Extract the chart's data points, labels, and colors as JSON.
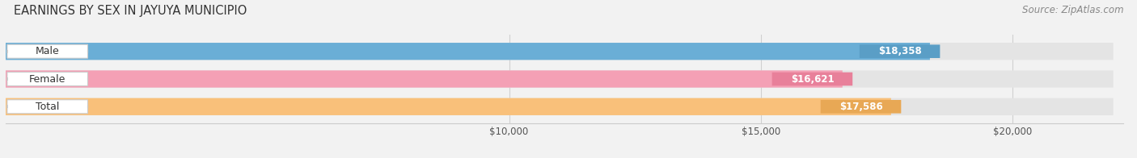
{
  "title": "EARNINGS BY SEX IN JAYUYA MUNICIPIO",
  "source": "Source: ZipAtlas.com",
  "categories": [
    "Male",
    "Female",
    "Total"
  ],
  "values": [
    18358,
    16621,
    17586
  ],
  "bar_colors": [
    "#6aaed6",
    "#f4a0b5",
    "#f9c07a"
  ],
  "value_badge_colors": [
    "#5a9ec6",
    "#e8809a",
    "#e8a855"
  ],
  "value_labels": [
    "$18,358",
    "$16,621",
    "$17,586"
  ],
  "xmin": 0,
  "xmax": 22000,
  "xticks": [
    10000,
    15000,
    20000
  ],
  "xtick_labels": [
    "$10,000",
    "$15,000",
    "$20,000"
  ],
  "title_fontsize": 10.5,
  "source_fontsize": 8.5,
  "bar_height": 0.62,
  "background_color": "#f2f2f2",
  "track_color": "#e4e4e4",
  "label_oval_color": "#ffffff",
  "grid_color": "#d0d0d0"
}
